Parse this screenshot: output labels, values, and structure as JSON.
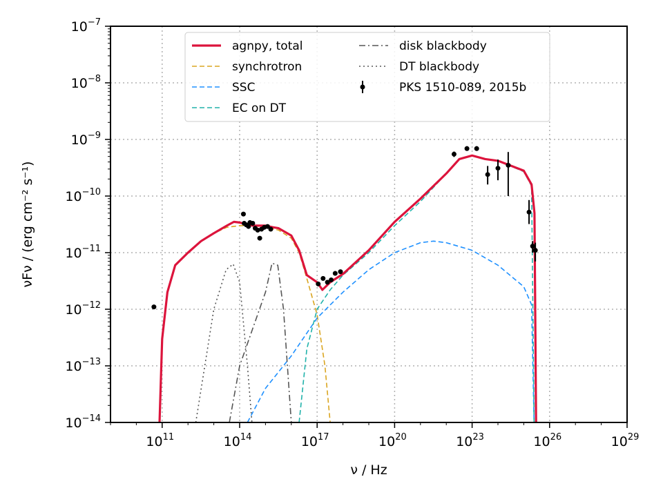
{
  "chart_data": {
    "type": "line",
    "title": "",
    "xlabel": "ν / Hz",
    "ylabel": "νFν / (erg cm⁻² s⁻¹)",
    "xscale": "log",
    "yscale": "log",
    "xlim": [
      1000000000.0,
      1e+29
    ],
    "ylim": [
      1e-14,
      1e-07
    ],
    "grid": true,
    "legend_position": "top-center",
    "x_tick_labels": [
      {
        "value": 100000000000.0,
        "base": "10",
        "exp": "11"
      },
      {
        "value": 100000000000000.0,
        "base": "10",
        "exp": "14"
      },
      {
        "value": 1e+17,
        "base": "10",
        "exp": "17"
      },
      {
        "value": 1e+20,
        "base": "10",
        "exp": "20"
      },
      {
        "value": 1e+23,
        "base": "10",
        "exp": "23"
      },
      {
        "value": 1e+26,
        "base": "10",
        "exp": "26"
      },
      {
        "value": 1e+29,
        "base": "10",
        "exp": "29"
      }
    ],
    "y_tick_labels": [
      {
        "value": 1e-07,
        "base": "10",
        "exp": "−7"
      },
      {
        "value": 1e-08,
        "base": "10",
        "exp": "−8"
      },
      {
        "value": 1e-09,
        "base": "10",
        "exp": "−9"
      },
      {
        "value": 1e-10,
        "base": "10",
        "exp": "−10"
      },
      {
        "value": 1e-11,
        "base": "10",
        "exp": "−11"
      },
      {
        "value": 1e-12,
        "base": "10",
        "exp": "−12"
      },
      {
        "value": 1e-13,
        "base": "10",
        "exp": "−13"
      },
      {
        "value": 1e-14,
        "base": "10",
        "exp": "−14"
      }
    ],
    "series": [
      {
        "name": "synchrotron",
        "color": "#DAA520",
        "style": "dashed",
        "points": [
          [
            79000000000.0,
            1e-14
          ],
          [
            100000000000.0,
            3e-13
          ],
          [
            160000000000.0,
            2e-12
          ],
          [
            320000000000.0,
            6e-12
          ],
          [
            1000000000000.0,
            1e-11
          ],
          [
            3200000000000.0,
            1.6e-11
          ],
          [
            10000000000000.0,
            2.2e-11
          ],
          [
            32000000000000.0,
            2.8e-11
          ],
          [
            100000000000000.0,
            3e-11
          ],
          [
            320000000000000.0,
            3e-11
          ],
          [
            1000000000000000.0,
            2.8e-11
          ],
          [
            3200000000000000.0,
            2.5e-11
          ],
          [
            1e+16,
            1.8e-11
          ],
          [
            2e+16,
            1e-11
          ],
          [
            4e+16,
            3.5e-12
          ],
          [
            1e+17,
            8e-13
          ],
          [
            2e+17,
            1e-13
          ],
          [
            3.2e+17,
            1e-14
          ]
        ]
      },
      {
        "name": "SSC",
        "color": "#1E90FF",
        "style": "dashed",
        "points": [
          [
            200000000000000.0,
            1e-14
          ],
          [
            1000000000000000.0,
            4e-14
          ],
          [
            1e+16,
            1.5e-13
          ],
          [
            1e+17,
            7e-13
          ],
          [
            1e+18,
            2e-12
          ],
          [
            1e+19,
            5e-12
          ],
          [
            1e+20,
            1e-11
          ],
          [
            1e+21,
            1.5e-11
          ],
          [
            3.2e+21,
            1.6e-11
          ],
          [
            1e+22,
            1.5e-11
          ],
          [
            1e+23,
            1.1e-11
          ],
          [
            1e+24,
            6e-12
          ],
          [
            1e+25,
            2.5e-12
          ],
          [
            2e+25,
            1.2e-12
          ],
          [
            2.5e+25,
            1e-14
          ]
        ]
      },
      {
        "name": "EC on DT",
        "color": "#20B2AA",
        "style": "dashed",
        "points": [
          [
            2e+16,
            1e-14
          ],
          [
            4e+16,
            2e-13
          ],
          [
            1e+17,
            1e-12
          ],
          [
            3.2e+17,
            2.2e-12
          ],
          [
            1e+18,
            4e-12
          ],
          [
            1e+19,
            1e-11
          ],
          [
            1e+20,
            3e-11
          ],
          [
            1e+21,
            8e-11
          ],
          [
            1e+22,
            2.5e-10
          ],
          [
            3.2e+22,
            4.5e-10
          ],
          [
            1e+23,
            5.2e-10
          ],
          [
            3.2e+23,
            4.5e-10
          ],
          [
            1e+24,
            4.2e-10
          ],
          [
            1e+25,
            2.7e-10
          ],
          [
            2e+25,
            1.5e-10
          ],
          [
            2.5e+25,
            1e-14
          ]
        ]
      },
      {
        "name": "disk blackbody",
        "color": "#555555",
        "style": "dashdot",
        "points": [
          [
            40000000000000.0,
            1e-14
          ],
          [
            100000000000000.0,
            1e-13
          ],
          [
            1000000000000000.0,
            2e-12
          ],
          [
            1800000000000000.0,
            6.5e-12
          ],
          [
            3000000000000000.0,
            6e-12
          ],
          [
            5000000000000000.0,
            1e-12
          ],
          [
            1e+16,
            1e-14
          ]
        ]
      },
      {
        "name": "DT blackbody",
        "color": "#555555",
        "style": "dotted",
        "points": [
          [
            2000000000000.0,
            1e-14
          ],
          [
            10000000000000.0,
            1e-12
          ],
          [
            30000000000000.0,
            5e-12
          ],
          [
            56000000000000.0,
            6.3e-12
          ],
          [
            100000000000000.0,
            3e-12
          ],
          [
            200000000000000.0,
            1e-13
          ],
          [
            300000000000000.0,
            1e-14
          ]
        ]
      },
      {
        "name": "agnpy, total",
        "color": "#DC143C",
        "style": "solid",
        "points": [
          [
            79000000000.0,
            1e-14
          ],
          [
            100000000000.0,
            3e-13
          ],
          [
            160000000000.0,
            2e-12
          ],
          [
            320000000000.0,
            6e-12
          ],
          [
            1000000000000.0,
            1e-11
          ],
          [
            3200000000000.0,
            1.6e-11
          ],
          [
            10000000000000.0,
            2.2e-11
          ],
          [
            32000000000000.0,
            3e-11
          ],
          [
            60000000000000.0,
            3.5e-11
          ],
          [
            100000000000000.0,
            3.4e-11
          ],
          [
            320000000000000.0,
            3e-11
          ],
          [
            1000000000000000.0,
            3e-11
          ],
          [
            2000000000000000.0,
            2.8e-11
          ],
          [
            3200000000000000.0,
            2.7e-11
          ],
          [
            1e+16,
            2e-11
          ],
          [
            2e+16,
            1.1e-11
          ],
          [
            4e+16,
            4e-12
          ],
          [
            1e+17,
            3e-12
          ],
          [
            1.6e+17,
            2.2e-12
          ],
          [
            3.2e+17,
            3e-12
          ],
          [
            1e+18,
            4.2e-12
          ],
          [
            1e+19,
            1.1e-11
          ],
          [
            1e+20,
            3.5e-11
          ],
          [
            1e+21,
            9e-11
          ],
          [
            1e+22,
            2.5e-10
          ],
          [
            3.2e+22,
            4.5e-10
          ],
          [
            1e+23,
            5.2e-10
          ],
          [
            3.2e+23,
            4.5e-10
          ],
          [
            1e+24,
            4.2e-10
          ],
          [
            1e+25,
            2.8e-10
          ],
          [
            2e+25,
            1.6e-10
          ],
          [
            2.6e+25,
            5e-11
          ],
          [
            3e+25,
            1e-14
          ]
        ]
      }
    ],
    "data_series": {
      "name": "PKS 1510-089, 2015b",
      "color": "#000000",
      "points": [
        {
          "x": 48000000000.0,
          "y": 1.1e-12
        },
        {
          "x": 140000000000000.0,
          "y": 4.8e-11
        },
        {
          "x": 150000000000000.0,
          "y": 3.3e-11
        },
        {
          "x": 180000000000000.0,
          "y": 3.1e-11
        },
        {
          "x": 220000000000000.0,
          "y": 2.9e-11
        },
        {
          "x": 250000000000000.0,
          "y": 3.4e-11
        },
        {
          "x": 320000000000000.0,
          "y": 3.3e-11
        },
        {
          "x": 400000000000000.0,
          "y": 2.7e-11
        },
        {
          "x": 500000000000000.0,
          "y": 2.5e-11
        },
        {
          "x": 600000000000000.0,
          "y": 1.8e-11
        },
        {
          "x": 700000000000000.0,
          "y": 2.6e-11
        },
        {
          "x": 900000000000000.0,
          "y": 2.8e-11
        },
        {
          "x": 1200000000000000.0,
          "y": 2.9e-11
        },
        {
          "x": 1600000000000000.0,
          "y": 2.6e-11
        },
        {
          "x": 1.1e+17,
          "y": 2.8e-12
        },
        {
          "x": 1.7e+17,
          "y": 3.5e-12
        },
        {
          "x": 2.5e+17,
          "y": 3e-12
        },
        {
          "x": 3.5e+17,
          "y": 3.3e-12
        },
        {
          "x": 5e+17,
          "y": 4.3e-12
        },
        {
          "x": 8e+17,
          "y": 4.6e-12
        },
        {
          "x": 2e+22,
          "y": 5.5e-10,
          "ylo": 4.9e-10,
          "yhi": 6.1e-10
        },
        {
          "x": 6.3e+22,
          "y": 6.9e-10,
          "ylo": 6.3e-10,
          "yhi": 7.6e-10
        },
        {
          "x": 1.5e+23,
          "y": 6.9e-10,
          "ylo": 6.3e-10,
          "yhi": 7.6e-10
        },
        {
          "x": 4e+23,
          "y": 2.4e-10,
          "ylo": 1.6e-10,
          "yhi": 3.4e-10
        },
        {
          "x": 1e+24,
          "y": 3.1e-10,
          "ylo": 1.9e-10,
          "yhi": 4.4e-10
        },
        {
          "x": 2.5e+24,
          "y": 3.5e-10,
          "ylo": 1e-10,
          "yhi": 6e-10
        },
        {
          "x": 1.6e+25,
          "y": 5.2e-11,
          "ylo": 3.2e-11,
          "yhi": 8.5e-11
        },
        {
          "x": 2.2e+25,
          "y": 1.3e-11,
          "ylo": 1e-11,
          "yhi": 1.6e-11
        },
        {
          "x": 2.8e+25,
          "y": 1.1e-11,
          "ylo": 7e-12,
          "yhi": 1.5e-11
        }
      ]
    },
    "legend": {
      "items": [
        {
          "label": "agnpy, total",
          "color": "#DC143C",
          "style": "solid"
        },
        {
          "label": "synchrotron",
          "color": "#DAA520",
          "style": "dashed"
        },
        {
          "label": "SSC",
          "color": "#1E90FF",
          "style": "dashed"
        },
        {
          "label": "EC on DT",
          "color": "#20B2AA",
          "style": "dashed"
        },
        {
          "label": "disk blackbody",
          "color": "#555555",
          "style": "dashdot"
        },
        {
          "label": "DT blackbody",
          "color": "#555555",
          "style": "dotted"
        },
        {
          "label": "PKS 1510-089, 2015b",
          "color": "#000000",
          "style": "errorbar"
        }
      ]
    }
  }
}
